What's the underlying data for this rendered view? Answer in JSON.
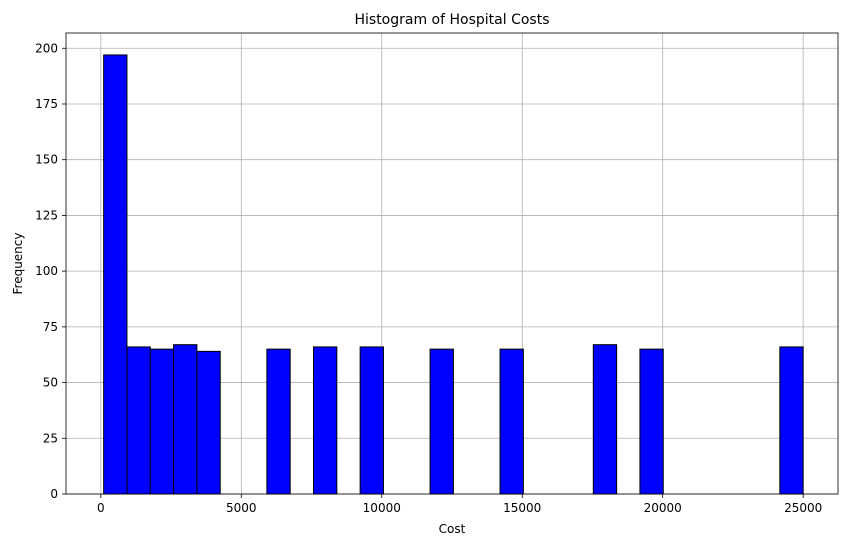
{
  "chart_data": {
    "type": "bar",
    "title": "Histogram of Hospital Costs",
    "xlabel": "Cost",
    "ylabel": "Frequency",
    "xlim": [
      -1240,
      26240
    ],
    "ylim": [
      0,
      206.85
    ],
    "xticks": [
      0,
      5000,
      10000,
      15000,
      20000,
      25000
    ],
    "yticks": [
      0,
      25,
      50,
      75,
      100,
      125,
      150,
      175,
      200
    ],
    "grid": true,
    "bar_color": "#0000ff",
    "edge_color": "#000000",
    "bin_start": 100,
    "bin_width": 830,
    "counts": [
      197,
      66,
      65,
      67,
      64,
      0,
      0,
      65,
      0,
      66,
      0,
      66,
      0,
      0,
      65,
      0,
      0,
      65,
      0,
      0,
      0,
      67,
      0,
      65,
      0,
      0,
      0,
      0,
      0,
      66
    ]
  }
}
